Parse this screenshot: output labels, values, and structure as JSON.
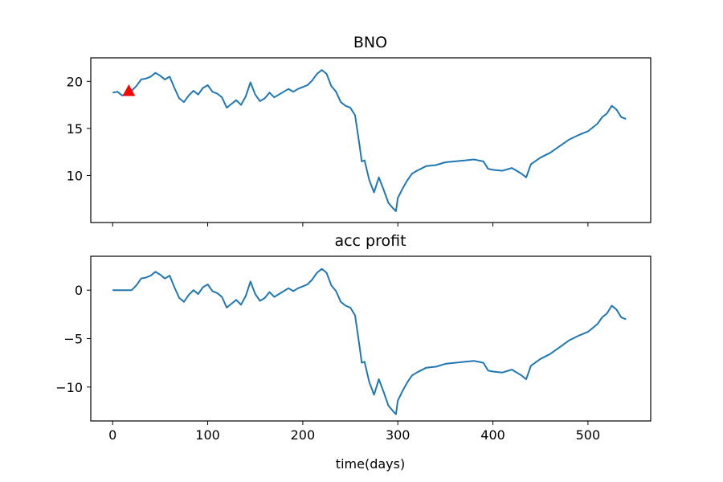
{
  "chart_data": [
    {
      "type": "line",
      "title": "BNO",
      "xlabel": "",
      "ylabel": "",
      "xlim": [
        -23,
        566
      ],
      "ylim": [
        5.0,
        22.5
      ],
      "xticks": [
        0,
        100,
        200,
        300,
        400,
        500
      ],
      "xtick_labels_visible": false,
      "yticks": [
        10,
        15,
        20
      ],
      "ytick_labels": [
        "10",
        "15",
        "20"
      ],
      "grid": false,
      "line_color": "#1f77b4",
      "series": [
        {
          "x": [
            0,
            5,
            10,
            15,
            20,
            25,
            30,
            35,
            40,
            45,
            50,
            55,
            60,
            65,
            70,
            75,
            80,
            85,
            90,
            95,
            100,
            105,
            110,
            115,
            120,
            125,
            130,
            135,
            140,
            145,
            150,
            155,
            160,
            165,
            170,
            175,
            180,
            185,
            190,
            195,
            200,
            205,
            210,
            215,
            220,
            225,
            230,
            235,
            240,
            245,
            250,
            255,
            260,
            262,
            265,
            270,
            275,
            280,
            285,
            290,
            295,
            298,
            300,
            305,
            310,
            315,
            320,
            330,
            340,
            350,
            360,
            370,
            380,
            385,
            390,
            395,
            400,
            410,
            420,
            430,
            435,
            440,
            450,
            460,
            470,
            480,
            490,
            500,
            510,
            515,
            520,
            525,
            530,
            535,
            540
          ],
          "values": [
            18.8,
            18.9,
            18.5,
            18.7,
            19.0,
            19.5,
            20.2,
            20.3,
            20.5,
            20.9,
            20.6,
            20.2,
            20.5,
            19.3,
            18.2,
            17.8,
            18.5,
            19.0,
            18.6,
            19.3,
            19.6,
            18.9,
            18.7,
            18.3,
            17.2,
            17.6,
            18.0,
            17.5,
            18.4,
            19.9,
            18.6,
            17.9,
            18.2,
            18.8,
            18.3,
            18.6,
            18.9,
            19.2,
            18.9,
            19.2,
            19.4,
            19.6,
            20.1,
            20.8,
            21.2,
            20.8,
            19.5,
            18.9,
            17.8,
            17.4,
            17.2,
            16.4,
            13.0,
            11.5,
            11.6,
            9.5,
            8.2,
            9.8,
            8.5,
            7.1,
            6.5,
            6.2,
            7.6,
            8.6,
            9.5,
            10.2,
            10.5,
            11.0,
            11.1,
            11.4,
            11.5,
            11.6,
            11.7,
            11.6,
            11.5,
            10.7,
            10.6,
            10.5,
            10.8,
            10.2,
            9.8,
            11.2,
            11.9,
            12.4,
            13.1,
            13.8,
            14.3,
            14.7,
            15.5,
            16.2,
            16.6,
            17.4,
            17.0,
            16.2,
            16.0
          ]
        }
      ],
      "annotations": [
        {
          "type": "marker",
          "shape": "triangle-up",
          "x": 17,
          "y": 19.0,
          "color": "#ff0000"
        }
      ]
    },
    {
      "type": "line",
      "title": "acc profit",
      "xlabel": "time(days)",
      "ylabel": "",
      "xlim": [
        -23,
        566
      ],
      "ylim": [
        -13.5,
        3.5
      ],
      "xticks": [
        0,
        100,
        200,
        300,
        400,
        500
      ],
      "xtick_labels": [
        "0",
        "100",
        "200",
        "300",
        "400",
        "500"
      ],
      "yticks": [
        -10,
        -5,
        0
      ],
      "ytick_labels": [
        "−10",
        "−5",
        "0"
      ],
      "grid": false,
      "line_color": "#1f77b4",
      "series": [
        {
          "x": [
            0,
            5,
            10,
            15,
            19,
            20,
            25,
            30,
            35,
            40,
            45,
            50,
            55,
            60,
            65,
            70,
            75,
            80,
            85,
            90,
            95,
            100,
            105,
            110,
            115,
            120,
            125,
            130,
            135,
            140,
            145,
            150,
            155,
            160,
            165,
            170,
            175,
            180,
            185,
            190,
            195,
            200,
            205,
            210,
            215,
            220,
            225,
            230,
            235,
            240,
            245,
            250,
            255,
            260,
            262,
            265,
            270,
            275,
            280,
            285,
            290,
            295,
            298,
            300,
            305,
            310,
            315,
            320,
            330,
            340,
            350,
            360,
            370,
            380,
            385,
            390,
            395,
            400,
            410,
            420,
            430,
            435,
            440,
            450,
            460,
            470,
            480,
            490,
            500,
            510,
            515,
            520,
            525,
            530,
            535,
            540
          ],
          "values": [
            0.0,
            0.0,
            0.0,
            0.0,
            0.0,
            0.0,
            0.5,
            1.2,
            1.3,
            1.5,
            1.9,
            1.6,
            1.2,
            1.5,
            0.3,
            -0.8,
            -1.2,
            -0.5,
            0.0,
            -0.4,
            0.3,
            0.6,
            -0.1,
            -0.3,
            -0.7,
            -1.8,
            -1.4,
            -1.0,
            -1.5,
            -0.6,
            0.9,
            -0.4,
            -1.1,
            -0.8,
            -0.2,
            -0.7,
            -0.4,
            -0.1,
            0.2,
            -0.1,
            0.2,
            0.4,
            0.6,
            1.1,
            1.8,
            2.2,
            1.8,
            0.5,
            -0.1,
            -1.2,
            -1.6,
            -1.8,
            -2.6,
            -6.0,
            -7.5,
            -7.4,
            -9.5,
            -10.8,
            -9.2,
            -10.5,
            -11.9,
            -12.5,
            -12.8,
            -11.4,
            -10.4,
            -9.5,
            -8.8,
            -8.5,
            -8.0,
            -7.9,
            -7.6,
            -7.5,
            -7.4,
            -7.3,
            -7.4,
            -7.5,
            -8.3,
            -8.4,
            -8.5,
            -8.2,
            -8.8,
            -9.2,
            -7.8,
            -7.1,
            -6.6,
            -5.9,
            -5.2,
            -4.7,
            -4.3,
            -3.5,
            -2.8,
            -2.4,
            -1.6,
            -2.0,
            -2.8,
            -3.0
          ]
        }
      ]
    }
  ]
}
